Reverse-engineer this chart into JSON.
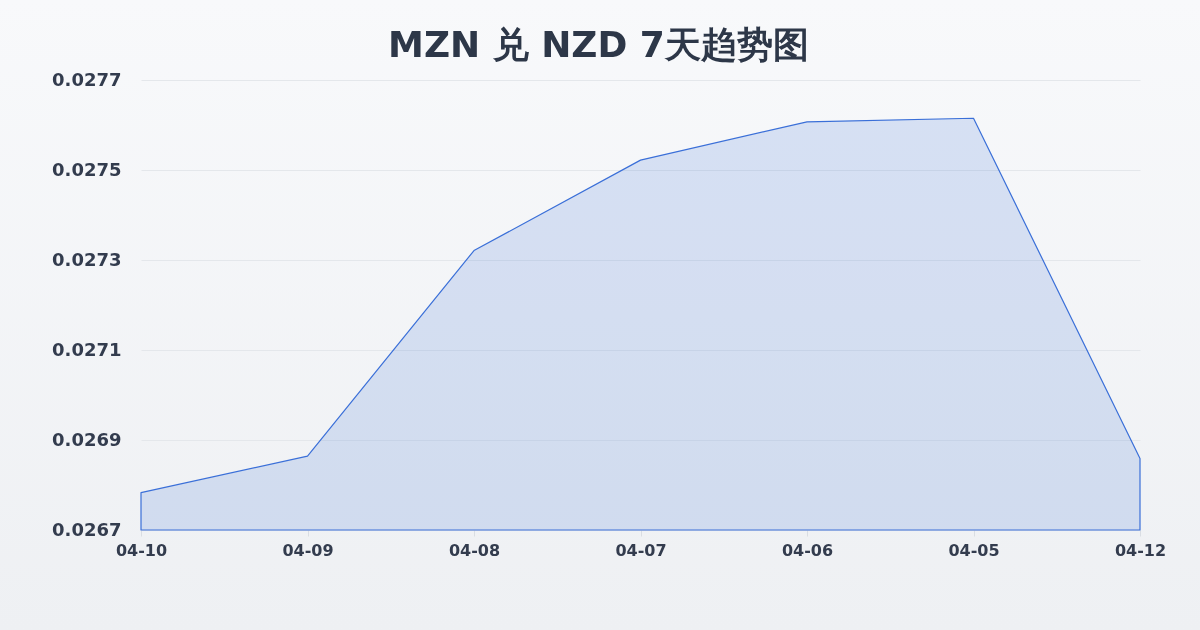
{
  "chart_data": {
    "type": "area",
    "title": "MZN 兑 NZD 7天趋势图",
    "categories": [
      "04-10",
      "04-09",
      "04-08",
      "04-07",
      "04-06",
      "04-05",
      "04-12"
    ],
    "series": [
      {
        "color": "#3a6fd8",
        "values": [
          0.026783,
          0.026864,
          0.027321,
          0.027522,
          0.027607,
          0.027615,
          0.026859
        ]
      }
    ],
    "ylim": [
      0.0267,
      0.0277
    ],
    "yticks": [
      0.0267,
      0.0269,
      0.0271,
      0.0273,
      0.0275,
      0.0277
    ],
    "grid": "y"
  }
}
